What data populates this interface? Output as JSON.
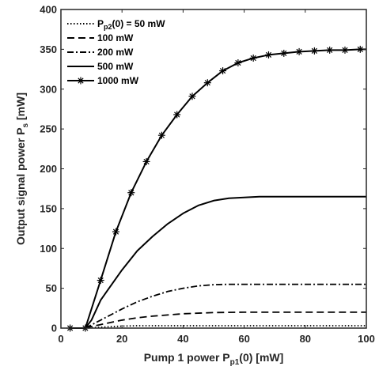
{
  "chart_data": {
    "type": "line",
    "xlabel": {
      "main": "Pump 1 power P",
      "sub": "p1",
      "tail": "(0) [mW]"
    },
    "ylabel": {
      "main": "Output signal power P",
      "sub": "s",
      "tail": " [mW]"
    },
    "xlim": [
      0,
      100
    ],
    "ylim": [
      0,
      400
    ],
    "xticks": [
      0,
      20,
      40,
      60,
      80,
      100
    ],
    "yticks": [
      0,
      50,
      100,
      150,
      200,
      250,
      300,
      350,
      400
    ],
    "grid": false,
    "legend_position": "top-left",
    "series": [
      {
        "name": "P_p2(0) = 50 mW",
        "label": {
          "main": "P",
          "sub": "p2",
          "tail": "(0) = 50 mW"
        },
        "style": "dotted",
        "x": [
          8,
          10,
          15,
          20,
          25,
          30,
          40,
          50,
          60,
          70,
          80,
          90,
          100
        ],
        "y": [
          0,
          0.5,
          1.5,
          2.5,
          3,
          3,
          3,
          3,
          3,
          3,
          3,
          3,
          3
        ]
      },
      {
        "name": "100 mW",
        "label": {
          "main": "100 mW"
        },
        "style": "dashed",
        "x": [
          8,
          10,
          15,
          20,
          25,
          30,
          40,
          50,
          60,
          70,
          80,
          90,
          100
        ],
        "y": [
          0,
          2,
          6,
          10,
          13,
          15,
          18,
          19.5,
          20,
          20,
          20,
          20,
          20
        ]
      },
      {
        "name": "200 mW",
        "label": {
          "main": "200 mW"
        },
        "style": "dashdot",
        "x": [
          8,
          10,
          15,
          20,
          25,
          30,
          35,
          40,
          45,
          50,
          55,
          60,
          70,
          80,
          90,
          100
        ],
        "y": [
          0,
          4,
          14,
          24,
          33,
          40,
          46,
          50,
          53,
          54.5,
          55,
          55,
          55,
          55,
          55,
          55
        ]
      },
      {
        "name": "500 mW",
        "label": {
          "main": "500 mW"
        },
        "style": "solid",
        "x": [
          8,
          10,
          13,
          15,
          20,
          25,
          30,
          35,
          40,
          45,
          50,
          55,
          60,
          65,
          70,
          80,
          90,
          100
        ],
        "y": [
          0,
          10,
          35,
          46,
          73,
          97,
          115,
          131,
          144,
          154,
          160,
          163,
          164,
          165,
          165,
          165,
          165,
          165
        ]
      },
      {
        "name": "1000 mW",
        "label": {
          "main": "1000 mW"
        },
        "style": "solid-star",
        "x": [
          3,
          8,
          13,
          18,
          23,
          28,
          33,
          38,
          43,
          48,
          53,
          58,
          63,
          68,
          73,
          78,
          83,
          88,
          93,
          98,
          100
        ],
        "y": [
          0,
          0,
          60,
          121,
          170,
          209,
          242,
          268,
          291,
          308,
          323,
          333,
          339,
          343,
          345,
          347,
          348,
          349,
          349,
          350,
          350
        ]
      }
    ]
  }
}
